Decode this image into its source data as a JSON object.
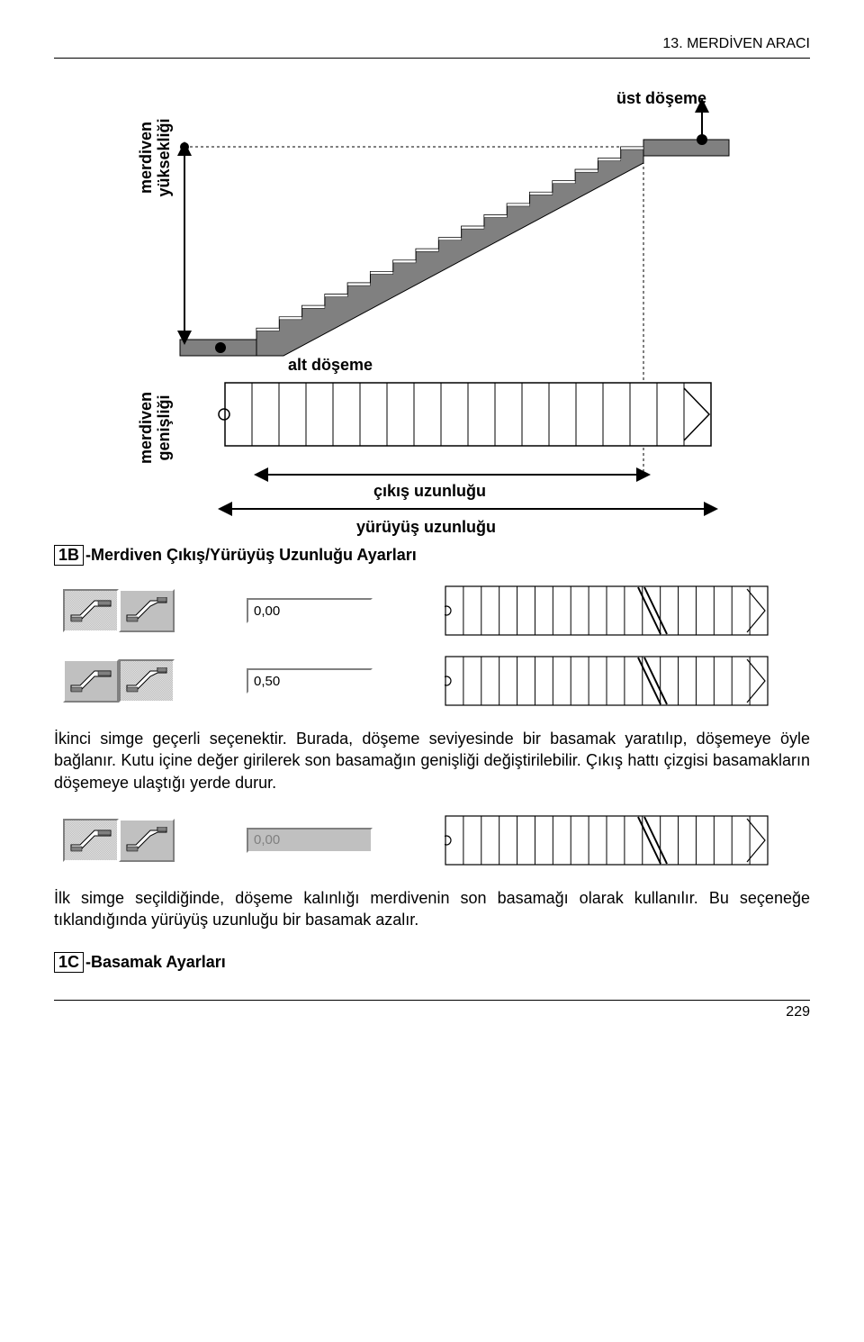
{
  "header": {
    "chapter_label": "13. MERDİVEN ARACI"
  },
  "figure": {
    "type": "diagram",
    "labels": {
      "ust_doseme": "üst döşeme",
      "alt_doseme": "alt döşeme",
      "merdiven_yuksekligi_line1": "merdiven",
      "merdiven_yuksekligi_line2": "yüksekliği",
      "merdiven_genisligi_line1": "merdiven",
      "merdiven_genisligi_line2": "genişliği",
      "cikis_uzunlugu": "çıkış uzunluğu",
      "yuruyus_uzunlugu": "yürüyüş uzunluğu"
    },
    "colors": {
      "stair_side_fill": "#808080",
      "stair_tread_fill": "#ffffff",
      "stroke": "#000000",
      "background": "#ffffff",
      "dim_line": "#000000",
      "dashed": "#000000"
    },
    "stair_steps": 17,
    "plan_cells": 18
  },
  "section1B": {
    "box_number": "1B",
    "title": "-Merdiven Çıkış/Yürüyüş Uzunluğu Ayarları"
  },
  "ui_rows": [
    {
      "value": "0,00",
      "pressed": 0,
      "disabled": false,
      "plan_breakline": true
    },
    {
      "value": "0,50",
      "pressed": 1,
      "disabled": false,
      "plan_breakline": true
    },
    {
      "value": "0,00",
      "pressed": 0,
      "disabled": true,
      "plan_breakline": true
    }
  ],
  "paragraph1": "İkinci simge geçerli seçenektir. Burada, döşeme seviyesinde bir basamak yaratılıp, döşemeye öyle bağlanır. Kutu içine değer girilerek son basamağın genişliği değiştirilebilir. Çıkış hattı çizgisi basamakların döşemeye ulaştığı yerde durur.",
  "paragraph2": "İlk simge seçildiğinde, döşeme kalınlığı merdivenin son basamağı olarak kullanılır. Bu seçeneğe tıklandığında yürüyüş uzunluğu bir basamak azalır.",
  "section1C": {
    "box_number": "1C",
    "title": "-Basamak Ayarları"
  },
  "page_number": "229"
}
